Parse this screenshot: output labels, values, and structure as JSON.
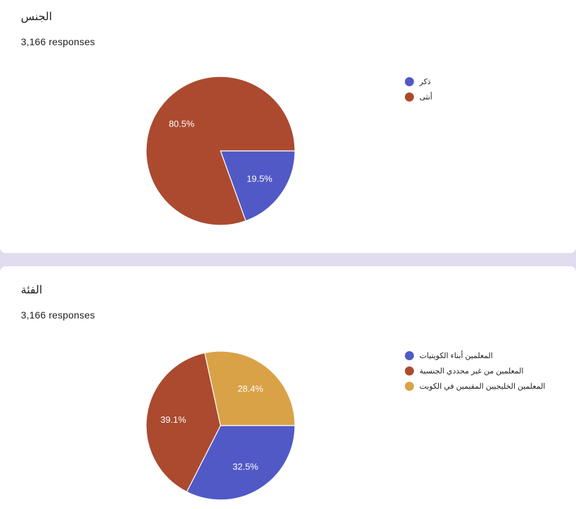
{
  "cards": [
    {
      "title": "الجنس",
      "responses": "3,166 responses"
    },
    {
      "title": "الفئة",
      "responses": "3,166 responses"
    }
  ],
  "chart_data": [
    {
      "type": "pie",
      "title": "الجنس",
      "categories": [
        "ذكر",
        "أنثى"
      ],
      "values": [
        19.5,
        80.5
      ],
      "data_labels": [
        "19.5%",
        "80.5%"
      ],
      "colors": [
        "#5059c6",
        "#ab4a2f"
      ],
      "legend_position": "right"
    },
    {
      "type": "pie",
      "title": "الفئة",
      "categories": [
        "المعلمين أبناء الكويتيات",
        "المعلمين من غير محددي الجنسية",
        "المعلمين الخليجيين المقيمين في الكويت"
      ],
      "values": [
        32.5,
        39.1,
        28.4
      ],
      "data_labels": [
        "32.5%",
        "39.1%",
        "28.4%"
      ],
      "colors": [
        "#5059c6",
        "#ab4a2f",
        "#d9a247"
      ],
      "legend_position": "right"
    }
  ]
}
